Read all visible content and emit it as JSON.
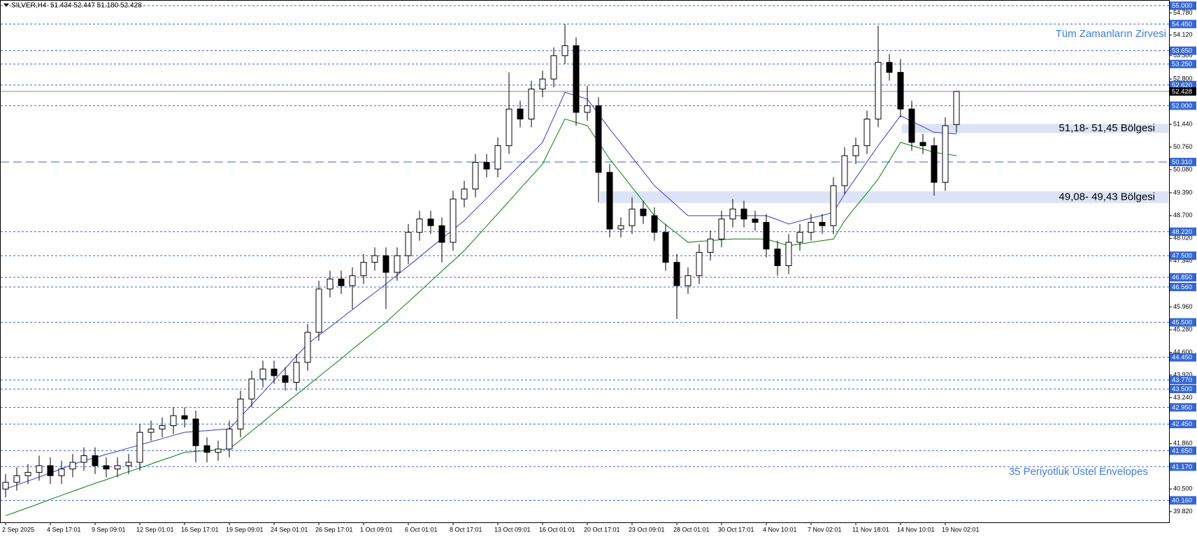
{
  "chart_data": {
    "type": "candlestick",
    "title": "SILVER,H4  51.434 52.447 51.180 52.428",
    "categories": [
      "2 Sep 2025",
      null,
      null,
      null,
      "4 Sep 17:01",
      null,
      null,
      null,
      "9 Sep 09:01",
      null,
      null,
      null,
      "12 Sep 01:01",
      null,
      null,
      null,
      "16 Sep 17:01",
      null,
      null,
      null,
      "19 Sep 09:01",
      null,
      null,
      null,
      "24 Sep 01:01",
      null,
      null,
      null,
      "26 Sep 17:01",
      null,
      null,
      null,
      "1 Oct 09:01",
      null,
      null,
      null,
      "6 Oct 01:01",
      null,
      null,
      null,
      "8 Oct 17:01",
      null,
      null,
      null,
      "13 Oct 09:01",
      null,
      null,
      null,
      "16 Oct 01:01",
      null,
      null,
      null,
      "20 Oct 17:01",
      null,
      null,
      null,
      "23 Oct 09:01",
      null,
      null,
      null,
      "28 Oct 01:01",
      null,
      null,
      null,
      "30 Oct 17:01",
      null,
      null,
      null,
      "4 Nov 10:01",
      null,
      null,
      null,
      "7 Nov 02:01",
      null,
      null,
      null,
      "11 Nov 18:01",
      null,
      null,
      null,
      "14 Nov 10:01",
      null,
      null,
      null,
      "19 Nov 02:01",
      null
    ],
    "ohlc": [
      [
        40.5,
        40.95,
        40.25,
        40.7
      ],
      [
        40.7,
        41.15,
        40.45,
        40.9
      ],
      [
        40.9,
        41.25,
        40.65,
        41.0
      ],
      [
        41.0,
        41.5,
        40.75,
        41.2
      ],
      [
        41.2,
        41.45,
        40.65,
        40.9
      ],
      [
        40.9,
        41.35,
        40.65,
        41.1
      ],
      [
        41.1,
        41.55,
        40.85,
        41.3
      ],
      [
        41.3,
        41.75,
        41.05,
        41.5
      ],
      [
        41.5,
        41.75,
        40.95,
        41.2
      ],
      [
        41.2,
        41.45,
        40.85,
        41.1
      ],
      [
        41.1,
        41.45,
        40.85,
        41.2
      ],
      [
        41.2,
        41.55,
        40.95,
        41.3
      ],
      [
        41.3,
        42.45,
        41.05,
        42.2
      ],
      [
        42.2,
        42.55,
        41.95,
        42.3
      ],
      [
        42.3,
        42.65,
        42.05,
        42.4
      ],
      [
        42.4,
        42.95,
        42.15,
        42.7
      ],
      [
        42.7,
        42.95,
        42.35,
        42.6
      ],
      [
        42.6,
        42.85,
        41.3,
        41.8
      ],
      [
        41.8,
        42.05,
        41.3,
        41.6
      ],
      [
        41.6,
        41.95,
        41.35,
        41.7
      ],
      [
        41.7,
        42.55,
        41.45,
        42.3
      ],
      [
        42.3,
        43.45,
        42.05,
        43.2
      ],
      [
        43.2,
        44.05,
        42.95,
        43.8
      ],
      [
        43.8,
        44.35,
        43.55,
        44.1
      ],
      [
        44.1,
        44.35,
        43.65,
        43.9
      ],
      [
        43.9,
        44.15,
        43.45,
        43.7
      ],
      [
        43.7,
        44.55,
        43.45,
        44.3
      ],
      [
        44.3,
        45.45,
        44.05,
        45.2
      ],
      [
        45.2,
        46.75,
        44.95,
        46.5
      ],
      [
        46.5,
        47.05,
        46.25,
        46.8
      ],
      [
        46.8,
        47.05,
        46.35,
        46.6
      ],
      [
        46.6,
        47.15,
        45.9,
        46.9
      ],
      [
        46.9,
        47.55,
        46.65,
        47.3
      ],
      [
        47.3,
        47.75,
        47.05,
        47.5
      ],
      [
        47.5,
        47.75,
        45.9,
        47.0
      ],
      [
        47.0,
        47.75,
        46.75,
        47.5
      ],
      [
        47.5,
        48.45,
        47.25,
        48.2
      ],
      [
        48.2,
        48.85,
        47.95,
        48.6
      ],
      [
        48.6,
        48.85,
        48.15,
        48.4
      ],
      [
        48.4,
        48.65,
        47.3,
        47.9
      ],
      [
        47.9,
        49.45,
        47.65,
        49.2
      ],
      [
        49.2,
        49.75,
        48.95,
        49.5
      ],
      [
        49.5,
        50.55,
        49.25,
        50.3
      ],
      [
        50.3,
        50.55,
        49.85,
        50.1
      ],
      [
        50.1,
        51.05,
        49.85,
        50.8
      ],
      [
        50.8,
        53.0,
        50.55,
        51.9
      ],
      [
        51.9,
        52.15,
        51.35,
        51.6
      ],
      [
        51.6,
        52.75,
        51.35,
        52.5
      ],
      [
        52.5,
        53.05,
        52.25,
        52.8
      ],
      [
        52.8,
        53.75,
        52.55,
        53.5
      ],
      [
        53.5,
        54.45,
        53.25,
        53.8
      ],
      [
        53.8,
        54.05,
        51.4,
        51.8
      ],
      [
        51.8,
        52.6,
        51.55,
        52.0
      ],
      [
        52.0,
        52.25,
        49.1,
        50.0
      ],
      [
        50.0,
        50.25,
        48.05,
        48.3
      ],
      [
        48.3,
        48.65,
        48.05,
        48.4
      ],
      [
        48.4,
        49.25,
        48.15,
        48.9
      ],
      [
        48.9,
        49.15,
        48.45,
        48.7
      ],
      [
        48.7,
        48.95,
        47.95,
        48.2
      ],
      [
        48.2,
        48.45,
        47.05,
        47.3
      ],
      [
        47.3,
        47.55,
        45.6,
        46.6
      ],
      [
        46.6,
        47.15,
        46.35,
        46.9
      ],
      [
        46.9,
        47.85,
        46.65,
        47.6
      ],
      [
        47.6,
        48.25,
        47.35,
        48.0
      ],
      [
        48.0,
        48.85,
        47.75,
        48.6
      ],
      [
        48.6,
        49.2,
        48.35,
        48.9
      ],
      [
        48.9,
        49.15,
        48.35,
        48.6
      ],
      [
        48.6,
        48.85,
        48.25,
        48.5
      ],
      [
        48.5,
        48.75,
        47.45,
        47.7
      ],
      [
        47.7,
        47.95,
        46.9,
        47.2
      ],
      [
        47.2,
        48.15,
        46.95,
        47.9
      ],
      [
        47.9,
        48.45,
        47.65,
        48.2
      ],
      [
        48.2,
        48.75,
        47.95,
        48.5
      ],
      [
        48.5,
        48.75,
        48.15,
        48.4
      ],
      [
        48.4,
        49.85,
        48.15,
        49.6
      ],
      [
        49.6,
        50.75,
        49.35,
        50.5
      ],
      [
        50.5,
        51.05,
        50.25,
        50.8
      ],
      [
        50.8,
        51.85,
        50.55,
        51.6
      ],
      [
        51.6,
        54.4,
        51.35,
        53.3
      ],
      [
        53.3,
        53.55,
        52.75,
        53.0
      ],
      [
        53.0,
        53.4,
        51.65,
        51.9
      ],
      [
        51.9,
        52.15,
        50.65,
        50.9
      ],
      [
        50.9,
        51.15,
        50.55,
        50.8
      ],
      [
        50.8,
        51.05,
        49.3,
        49.7
      ],
      [
        49.7,
        51.65,
        49.45,
        51.4
      ],
      [
        51.434,
        52.447,
        51.18,
        52.428
      ]
    ],
    "up_color": "#ffffff",
    "down_color": "#000000",
    "wick_color": "#000000",
    "envelopes": [
      {
        "color": "#3a3ad0",
        "values": [
          40.5,
          40.62,
          40.74,
          40.86,
          40.98,
          41.11,
          41.23,
          41.35,
          41.44,
          41.54,
          41.63,
          41.73,
          41.82,
          41.92,
          42.01,
          42.11,
          42.2,
          42.23,
          42.25,
          42.28,
          42.3,
          42.66,
          43.03,
          43.39,
          43.76,
          44.12,
          44.49,
          44.85,
          45.11,
          45.36,
          45.62,
          45.88,
          46.14,
          46.39,
          46.65,
          46.92,
          47.19,
          47.46,
          47.74,
          48.01,
          48.28,
          48.55,
          48.89,
          49.22,
          49.56,
          49.89,
          50.23,
          50.56,
          50.9,
          51.65,
          52.4,
          52.3,
          52.2,
          51.75,
          51.3,
          50.88,
          50.45,
          50.03,
          49.6,
          49.3,
          49.0,
          48.7,
          48.7,
          48.7,
          48.7,
          48.7,
          48.7,
          48.7,
          48.7,
          48.58,
          48.45,
          48.54,
          48.63,
          48.71,
          48.8,
          49.35,
          49.83,
          50.32,
          50.8,
          51.25,
          51.7,
          51.53,
          51.37,
          51.2,
          51.18,
          51.15
        ]
      },
      {
        "color": "#008000",
        "values": [
          39.7,
          39.82,
          39.94,
          40.06,
          40.19,
          40.31,
          40.43,
          40.55,
          40.67,
          40.78,
          40.9,
          41.02,
          41.13,
          41.25,
          41.37,
          41.48,
          41.6,
          41.63,
          41.65,
          41.68,
          41.7,
          41.97,
          42.24,
          42.51,
          42.79,
          43.06,
          43.33,
          43.6,
          43.87,
          44.14,
          44.41,
          44.69,
          44.96,
          45.23,
          45.5,
          45.81,
          46.11,
          46.42,
          46.73,
          47.04,
          47.34,
          47.65,
          48.02,
          48.39,
          48.76,
          49.13,
          49.51,
          49.88,
          50.25,
          50.93,
          51.6,
          51.5,
          51.4,
          50.9,
          50.4,
          49.98,
          49.55,
          49.13,
          48.7,
          48.43,
          48.17,
          47.9,
          47.93,
          47.95,
          47.98,
          48.0,
          48.0,
          48.0,
          48.0,
          47.9,
          47.8,
          47.85,
          47.9,
          47.95,
          48.0,
          48.55,
          48.97,
          49.38,
          49.8,
          50.35,
          50.9,
          50.8,
          50.7,
          50.6,
          50.55,
          50.5
        ]
      }
    ],
    "ylim": [
      39.5,
      55.15
    ],
    "yticks": [
      {
        "value": 54.78,
        "label": "54.780"
      },
      {
        "value": 54.12,
        "label": "54.120"
      },
      {
        "value": 53.5,
        "label": "53.500"
      },
      {
        "value": 52.8,
        "label": "52.800"
      },
      {
        "value": 51.44,
        "label": "51.440"
      },
      {
        "value": 50.76,
        "label": "50.760"
      },
      {
        "value": 50.08,
        "label": "50.080"
      },
      {
        "value": 49.39,
        "label": "49.390"
      },
      {
        "value": 48.7,
        "label": "48.700"
      },
      {
        "value": 48.02,
        "label": "48.020"
      },
      {
        "value": 47.34,
        "label": "47.340"
      },
      {
        "value": 45.96,
        "label": "45.960"
      },
      {
        "value": 45.28,
        "label": "45.280"
      },
      {
        "value": 44.6,
        "label": "44.600"
      },
      {
        "value": 43.92,
        "label": "43.920"
      },
      {
        "value": 43.24,
        "label": "43.240"
      },
      {
        "value": 41.86,
        "label": "41.860"
      },
      {
        "value": 40.5,
        "label": "40.500"
      },
      {
        "value": 39.82,
        "label": "39.820"
      }
    ],
    "grid": false,
    "levels": [
      {
        "value": 55,
        "label": "55.000"
      },
      {
        "value": 54.45,
        "label": "54.450"
      },
      {
        "value": 53.65,
        "label": "53.650"
      },
      {
        "value": 53.25,
        "label": "53.250"
      },
      {
        "value": 52.62,
        "label": "52.620"
      },
      {
        "value": 52,
        "label": "52.000"
      },
      {
        "value": 50.31,
        "label": "50.310",
        "dash": "long"
      },
      {
        "value": 48.22,
        "label": "48.220"
      },
      {
        "value": 47.5,
        "label": "47.500"
      },
      {
        "value": 46.85,
        "label": "46.850"
      },
      {
        "value": 46.56,
        "label": "46.560"
      },
      {
        "value": 45.5,
        "label": "45.500"
      },
      {
        "value": 44.45,
        "label": "44.450"
      },
      {
        "value": 43.77,
        "label": "43.770"
      },
      {
        "value": 43.5,
        "label": "43.500"
      },
      {
        "value": 42.95,
        "label": "42.950"
      },
      {
        "value": 42.45,
        "label": "42.450"
      },
      {
        "value": 41.65,
        "label": "41.650"
      },
      {
        "value": 41.17,
        "label": "41.170"
      },
      {
        "value": 40.16,
        "label": "40.160"
      }
    ],
    "level_color": "#3466d6",
    "current_price": {
      "value": 52.428,
      "label": "52.428"
    },
    "zones": [
      {
        "from": 51.18,
        "to": 51.45,
        "label": "51,18- 51,45 Bölgesi"
      },
      {
        "from": 49.08,
        "to": 49.43,
        "label": "49,08- 49,43 Bölgesi"
      }
    ],
    "annotations": [
      "Tüm Zamanların Zirvesi",
      "35 Periyotluk Üstel Envelopes"
    ]
  }
}
